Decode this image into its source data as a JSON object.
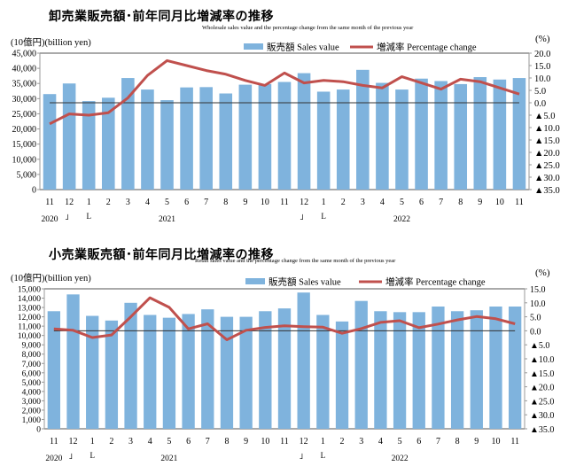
{
  "chart_data": [
    {
      "type": "bar",
      "id": "wholesale",
      "title": "卸売業販売額･前年同月比増減率の推移",
      "subtitle": "Wholesale sales value and the percentage change from the same month of the previous year",
      "left_unit": "(10億円)(billion yen)",
      "right_unit": "(%)",
      "legend": [
        "販売額 Sales value",
        "増減率 Percentage change"
      ],
      "legend_placement": "top-center",
      "categories": [
        "11",
        "12",
        "1",
        "2",
        "3",
        "4",
        "5",
        "6",
        "7",
        "8",
        "9",
        "10",
        "11",
        "12",
        "1",
        "2",
        "3",
        "4",
        "5",
        "6",
        "7",
        "8",
        "9",
        "10",
        "11"
      ],
      "year_labels": [
        {
          "index": 0,
          "label": "2020"
        },
        {
          "index": 6,
          "label": "2021"
        },
        {
          "index": 18,
          "label": "2022"
        }
      ],
      "year_break_marks": [
        {
          "index": 1,
          "mark": "」"
        },
        {
          "index": 2,
          "mark": "L"
        },
        {
          "index": 13,
          "mark": "」"
        },
        {
          "index": 14,
          "mark": "L"
        }
      ],
      "series": [
        {
          "name": "販売額 Sales value",
          "axis": "left",
          "kind": "bar",
          "color": "#7fb3dd",
          "values": [
            31500,
            35000,
            29200,
            30300,
            36800,
            33000,
            29500,
            33700,
            33800,
            31700,
            34600,
            34800,
            35500,
            38400,
            32300,
            33000,
            39500,
            35200,
            33000,
            36600,
            35800,
            34800,
            37100,
            36300,
            36800
          ]
        },
        {
          "name": "増減率 Percentage change",
          "axis": "right",
          "kind": "line",
          "color": "#c0504d",
          "values": [
            -8.5,
            -4.5,
            -5.0,
            -4.0,
            2.0,
            11.0,
            17.0,
            15.0,
            13.0,
            11.5,
            9.0,
            7.0,
            12.0,
            8.0,
            9.0,
            8.5,
            7.0,
            6.0,
            10.5,
            8.0,
            5.5,
            9.5,
            8.5,
            6.0,
            3.5
          ]
        }
      ],
      "left_axis": {
        "ylim": [
          0,
          45000
        ],
        "ticks": [
          "0",
          "5,000",
          "10,000",
          "15,000",
          "20,000",
          "25,000",
          "30,000",
          "35,000",
          "40,000",
          "45,000"
        ]
      },
      "right_axis": {
        "ylim": [
          -35,
          20
        ],
        "ticks": [
          "▲35.0",
          "▲30.0",
          "▲25.0",
          "▲20.0",
          "▲15.0",
          "▲10.0",
          "▲5.0",
          "0.0",
          "5.0",
          "10.0",
          "15.0",
          "20.0"
        ]
      },
      "grid": false
    },
    {
      "type": "bar",
      "id": "retail",
      "title": "小売業販売額･前年同月比増減率の推移",
      "subtitle": "Retail sales value and the percentage change from the same month of the previous year",
      "left_unit": "(10億円)(billion yen)",
      "right_unit": "(%)",
      "legend": [
        "販売額 Sales value",
        "増減率 Percentage change"
      ],
      "legend_placement": "top-center",
      "categories": [
        "11",
        "12",
        "1",
        "2",
        "3",
        "4",
        "5",
        "6",
        "7",
        "8",
        "9",
        "10",
        "11",
        "12",
        "1",
        "2",
        "3",
        "4",
        "5",
        "6",
        "7",
        "8",
        "9",
        "10",
        "11"
      ],
      "year_labels": [
        {
          "index": 0,
          "label": "2020"
        },
        {
          "index": 6,
          "label": "2021"
        },
        {
          "index": 18,
          "label": "2022"
        }
      ],
      "year_break_marks": [
        {
          "index": 1,
          "mark": "」"
        },
        {
          "index": 2,
          "mark": "L"
        },
        {
          "index": 13,
          "mark": "」"
        },
        {
          "index": 14,
          "mark": "L"
        }
      ],
      "series": [
        {
          "name": "販売額 Sales value",
          "axis": "left",
          "kind": "bar",
          "color": "#7fb3dd",
          "values": [
            12600,
            14400,
            12100,
            11600,
            13500,
            12200,
            11900,
            12300,
            12800,
            12000,
            12000,
            12600,
            12900,
            14600,
            12200,
            11500,
            13700,
            12600,
            12500,
            12500,
            13100,
            12600,
            12700,
            13100,
            13100
          ]
        },
        {
          "name": "増減率 Percentage change",
          "axis": "right",
          "kind": "line",
          "color": "#c0504d",
          "values": [
            0.7,
            0.2,
            -2.4,
            -1.5,
            5.0,
            11.8,
            8.4,
            0.7,
            2.5,
            -3.2,
            0.2,
            1.2,
            1.8,
            1.5,
            1.3,
            -0.9,
            0.8,
            3.0,
            3.6,
            1.1,
            2.4,
            3.9,
            5.1,
            4.3,
            2.5
          ]
        }
      ],
      "left_axis": {
        "ylim": [
          0,
          15000
        ],
        "ticks": [
          "0",
          "1,000",
          "2,000",
          "3,000",
          "4,000",
          "5,000",
          "6,000",
          "7,000",
          "8,000",
          "9,000",
          "10,000",
          "11,000",
          "12,000",
          "13,000",
          "14,000",
          "15,000"
        ]
      },
      "right_axis": {
        "ylim": [
          -35,
          15
        ],
        "ticks": [
          "▲35.0",
          "▲30.0",
          "▲25.0",
          "▲20.0",
          "▲15.0",
          "▲10.0",
          "▲5.0",
          "0.0",
          "5.0",
          "10.0",
          "15.0"
        ]
      },
      "grid": false
    }
  ]
}
